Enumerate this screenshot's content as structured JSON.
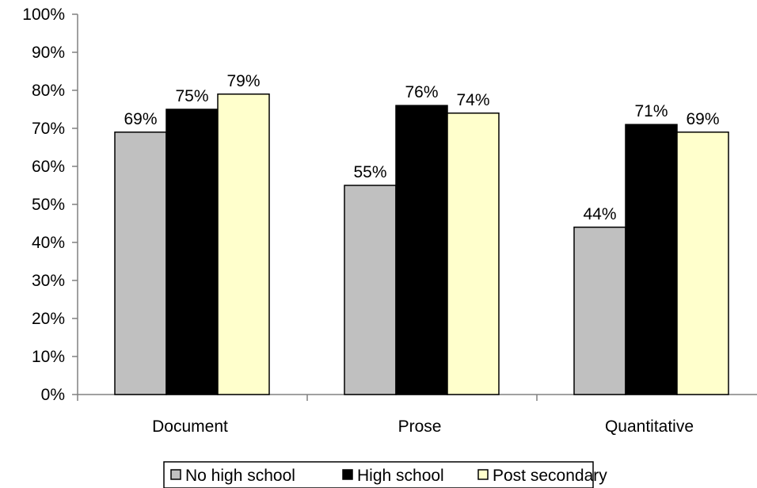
{
  "chart_data": {
    "type": "bar",
    "title": "",
    "xlabel": "",
    "ylabel": "",
    "categories": [
      "Document",
      "Prose",
      "Quantitative"
    ],
    "series": [
      {
        "name": "No high school",
        "values": [
          69,
          55,
          44
        ],
        "color": "#c0c0c0"
      },
      {
        "name": "High school",
        "values": [
          75,
          76,
          71
        ],
        "color": "#000000"
      },
      {
        "name": "Post secondary",
        "values": [
          79,
          74,
          69
        ],
        "color": "#ffffcc"
      }
    ],
    "data_labels": [
      [
        "69%",
        "55%",
        "44%"
      ],
      [
        "75%",
        "76%",
        "71%"
      ],
      [
        "79%",
        "74%",
        "69%"
      ]
    ],
    "ylim": [
      0,
      100
    ],
    "yticks": [
      0,
      10,
      20,
      30,
      40,
      50,
      60,
      70,
      80,
      90,
      100
    ],
    "ytick_labels": [
      "0%",
      "10%",
      "20%",
      "30%",
      "40%",
      "50%",
      "60%",
      "70%",
      "80%",
      "90%",
      "100%"
    ],
    "grid": false,
    "legend_position": "bottom"
  }
}
